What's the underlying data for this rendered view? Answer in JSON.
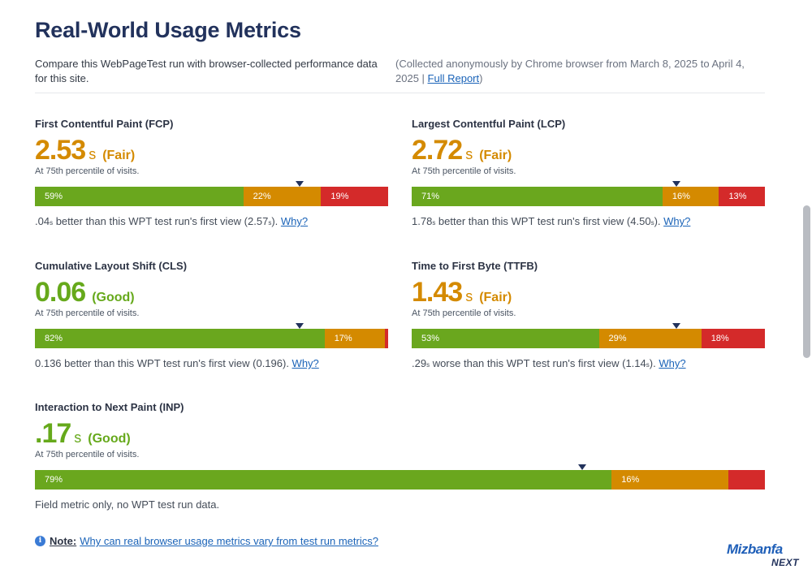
{
  "header": {
    "title": "Real-World Usage Metrics",
    "intro": "Compare this WebPageTest run with browser-collected performance data for this site.",
    "collected_prefix": "(Collected anonymously by Chrome browser from March 8, 2025 to April 4, 2025 | ",
    "full_report": "Full Report",
    "collected_suffix": ")"
  },
  "metrics": {
    "fcp": {
      "title": "First Contentful Paint (FCP)",
      "value": "2.53",
      "unit": "s",
      "rating": "(Fair)",
      "percentile": "At 75th percentile of visits.",
      "dist": {
        "good": 59,
        "ni": 22,
        "poor": 19
      },
      "good_label": "59%",
      "ni_label": "22%",
      "poor_label": "19%",
      "marker_pct": 75,
      "cmp_value": ".04",
      "cmp_unit": "s",
      "cmp_text": " better than this WPT test run's first view (",
      "cmp_run": "2.57",
      "cmp_run_unit": "s",
      "cmp_end": "). ",
      "why": "Why?"
    },
    "lcp": {
      "title": "Largest Contentful Paint (LCP)",
      "value": "2.72",
      "unit": "s",
      "rating": "(Fair)",
      "percentile": "At 75th percentile of visits.",
      "dist": {
        "good": 71,
        "ni": 16,
        "poor": 13
      },
      "good_label": "71%",
      "ni_label": "16%",
      "poor_label": "13%",
      "marker_pct": 75,
      "cmp_value": "1.78",
      "cmp_unit": "s",
      "cmp_text": " better than this WPT test run's first view (",
      "cmp_run": "4.50",
      "cmp_run_unit": "s",
      "cmp_end": "). ",
      "why": "Why?"
    },
    "cls": {
      "title": "Cumulative Layout Shift (CLS)",
      "value": "0.06",
      "rating": "(Good)",
      "percentile": "At 75th percentile of visits.",
      "dist": {
        "good": 82,
        "ni": 17,
        "poor": 1
      },
      "good_label": "82%",
      "ni_label": "17%",
      "poor_label": "",
      "marker_pct": 75,
      "cmp_full": "0.136 better than this WPT test run's first view (0.196). ",
      "why": "Why?"
    },
    "ttfb": {
      "title": "Time to First Byte (TTFB)",
      "value": "1.43",
      "unit": "s",
      "rating": "(Fair)",
      "percentile": "At 75th percentile of visits.",
      "dist": {
        "good": 53,
        "ni": 29,
        "poor": 18
      },
      "good_label": "53%",
      "ni_label": "29%",
      "poor_label": "18%",
      "marker_pct": 75,
      "cmp_value": ".29",
      "cmp_unit": "s",
      "cmp_text": " worse than this WPT test run's first view (",
      "cmp_run": "1.14",
      "cmp_run_unit": "s",
      "cmp_end": "). ",
      "why": "Why?"
    },
    "inp": {
      "title": "Interaction to Next Paint (INP)",
      "value": ".17",
      "unit": "s",
      "rating": "(Good)",
      "percentile": "At 75th percentile of visits.",
      "dist": {
        "good": 79,
        "ni": 16,
        "poor": 5
      },
      "good_label": "79%",
      "ni_label": "16%",
      "poor_label": "",
      "marker_pct": 75,
      "cmp_full": "Field metric only, no WPT test run data."
    }
  },
  "note": {
    "label": "Note:",
    "link": "Why can real browser usage metrics vary from test run metrics?"
  },
  "logo": {
    "top": "Mizbanfa",
    "bottom": "NEXT"
  },
  "colors": {
    "good": "#6aa71e",
    "needs_improvement": "#d48a00",
    "poor": "#d42a2a",
    "title": "#22325c",
    "link": "#1a63b8"
  },
  "icons": {
    "note_icon": "info-icon"
  }
}
